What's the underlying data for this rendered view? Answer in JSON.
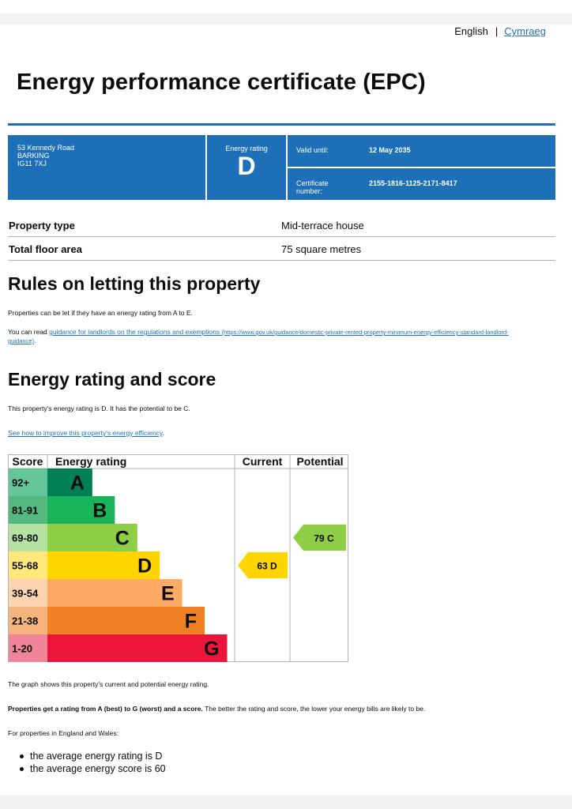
{
  "language": {
    "current": "English",
    "other": "Cymraeg"
  },
  "title": "Energy performance certificate (EPC)",
  "summary": {
    "address": [
      "53 Kennedy Road",
      "BARKING",
      "IG11 7XJ"
    ],
    "energy_rating_label": "Energy rating",
    "energy_rating": "D",
    "valid_until_label": "Valid until:",
    "valid_until": "12 May 2035",
    "certificate_label_1": "Certificate",
    "certificate_label_2": "number:",
    "certificate_number": "2155-1816-1125-2171-8417"
  },
  "property": [
    {
      "label": "Property type",
      "value": "Mid-terrace house"
    },
    {
      "label": "Total floor area",
      "value": "75 square metres"
    }
  ],
  "letting": {
    "heading": "Rules on letting this property",
    "para1": "Properties can be let if they have an energy rating from A to E.",
    "para2_prefix": "You can read ",
    "link_text": "guidance for landlords on the regulations and exemptions",
    "link_url_1": "(https://www.gov.uk/guidance/domestic-private-rented-property-minimum-energy-efficiency-standard-landlord-",
    "link_url_2": "guidance)",
    "para2_suffix": "."
  },
  "rating": {
    "heading": "Energy rating and score",
    "para1": "This property's energy rating is D. It has the potential to be C.",
    "improve_link": "See how to improve this property's energy efficiency",
    "improve_suffix": ".",
    "graph_caption": "The graph shows this property's current and potential energy rating.",
    "bold_text": "Properties get a rating from A (best) to G (worst) and a score.",
    "rest_text": " The better the rating and score, the lower your energy bills are likely to be.",
    "for_properties": "For properties in England and Wales:",
    "bullets": [
      "the average energy rating is D",
      "the average energy score is 60"
    ]
  },
  "chart_data": {
    "type": "table",
    "headers": [
      "Score",
      "Energy rating",
      "Current",
      "Potential"
    ],
    "bands": [
      {
        "score": "92+",
        "letter": "A",
        "color": "#008054",
        "score_bg": "#64c59d",
        "rel": 0.24
      },
      {
        "score": "81-91",
        "letter": "B",
        "color": "#19b459",
        "score_bg": "#53b97e",
        "rel": 0.36
      },
      {
        "score": "69-80",
        "letter": "C",
        "color": "#8dce46",
        "score_bg": "#b5e1a1",
        "rel": 0.48
      },
      {
        "score": "55-68",
        "letter": "D",
        "color": "#ffd500",
        "score_bg": "#ffe97c",
        "rel": 0.6
      },
      {
        "score": "39-54",
        "letter": "E",
        "color": "#fcaa65",
        "score_bg": "#fed4b0",
        "rel": 0.72
      },
      {
        "score": "21-38",
        "letter": "F",
        "color": "#ef8023",
        "score_bg": "#f5b47d",
        "rel": 0.84
      },
      {
        "score": "1-20",
        "letter": "G",
        "color": "#e9153b",
        "score_bg": "#f08498",
        "rel": 0.96
      }
    ],
    "current": {
      "score": 63,
      "letter": "D",
      "color": "#ffd500"
    },
    "potential": {
      "score": 79,
      "letter": "C",
      "color": "#8dce46"
    }
  }
}
